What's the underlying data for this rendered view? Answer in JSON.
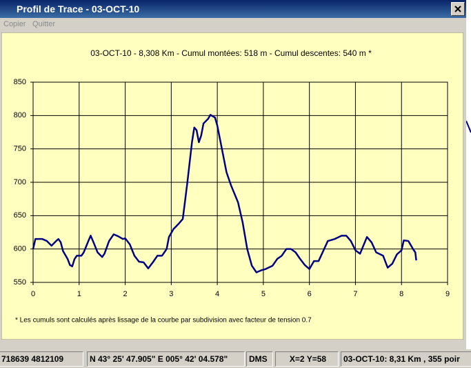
{
  "window": {
    "title": "Profil de Trace - 03-OCT-10",
    "menu": [
      "Copier",
      "Quitter"
    ],
    "status": [
      "718639 4812109",
      "N 43° 25' 47.905\" E 005° 42' 04.578\"",
      "DMS",
      "X=2 Y=58",
      "03-OCT-10:  8,31 Km  , 355 poir"
    ]
  },
  "chart_data": {
    "type": "line",
    "title": "03-OCT-10 - 8,308 Km - Cumul montées: 518 m - Cumul descentes: 540 m *",
    "annotation": "* Les cumuls sont calculés après lissage de la courbe par subdivision avec facteur de tension 0.7",
    "x": [
      0,
      0.05,
      0.2,
      0.3,
      0.4,
      0.5,
      0.55,
      0.6,
      0.65,
      0.75,
      0.8,
      0.85,
      0.9,
      0.95,
      1.05,
      1.1,
      1.2,
      1.25,
      1.3,
      1.4,
      1.5,
      1.55,
      1.65,
      1.75,
      1.85,
      1.95,
      2.0,
      2.1,
      2.2,
      2.3,
      2.4,
      2.5,
      2.6,
      2.7,
      2.8,
      2.9,
      2.95,
      3.05,
      3.15,
      3.25,
      3.3,
      3.35,
      3.4,
      3.45,
      3.5,
      3.55,
      3.6,
      3.65,
      3.7,
      3.8,
      3.85,
      3.95,
      4.0,
      4.1,
      4.2,
      4.3,
      4.45,
      4.55,
      4.65,
      4.75,
      4.85,
      4.95,
      5.05,
      5.2,
      5.3,
      5.4,
      5.5,
      5.6,
      5.7,
      5.8,
      5.9,
      6.0,
      6.1,
      6.2,
      6.3,
      6.4,
      6.55,
      6.7,
      6.8,
      6.9,
      7.0,
      7.1,
      7.25,
      7.35,
      7.45,
      7.6,
      7.7,
      7.8,
      7.9,
      8.0,
      8.05,
      8.15,
      8.25,
      8.3,
      8.32
    ],
    "series": [
      {
        "color": "#000080",
        "values": [
          600,
          615,
          615,
          612,
          605,
          612,
          615,
          610,
          597,
          585,
          576,
          574,
          585,
          590,
          590,
          595,
          612,
          620,
          612,
          595,
          588,
          593,
          612,
          622,
          619,
          615,
          616,
          607,
          590,
          581,
          580,
          571,
          580,
          590,
          590,
          600,
          618,
          630,
          637,
          645,
          672,
          700,
          730,
          760,
          782,
          778,
          760,
          770,
          788,
          795,
          801,
          797,
          785,
          750,
          715,
          695,
          670,
          640,
          600,
          575,
          565,
          568,
          570,
          575,
          585,
          590,
          600,
          600,
          595,
          585,
          576,
          570,
          582,
          582,
          597,
          612,
          615,
          620,
          620,
          612,
          598,
          593,
          618,
          610,
          595,
          590,
          572,
          578,
          592,
          598,
          613,
          612,
          600,
          595,
          583
        ]
      }
    ],
    "xlim": [
      0,
      9
    ],
    "ylim": [
      550,
      850
    ],
    "xticks": [
      0,
      1,
      2,
      3,
      4,
      5,
      6,
      7,
      8,
      9
    ],
    "yticks": [
      550,
      600,
      650,
      700,
      750,
      800,
      850
    ],
    "grid": true
  }
}
